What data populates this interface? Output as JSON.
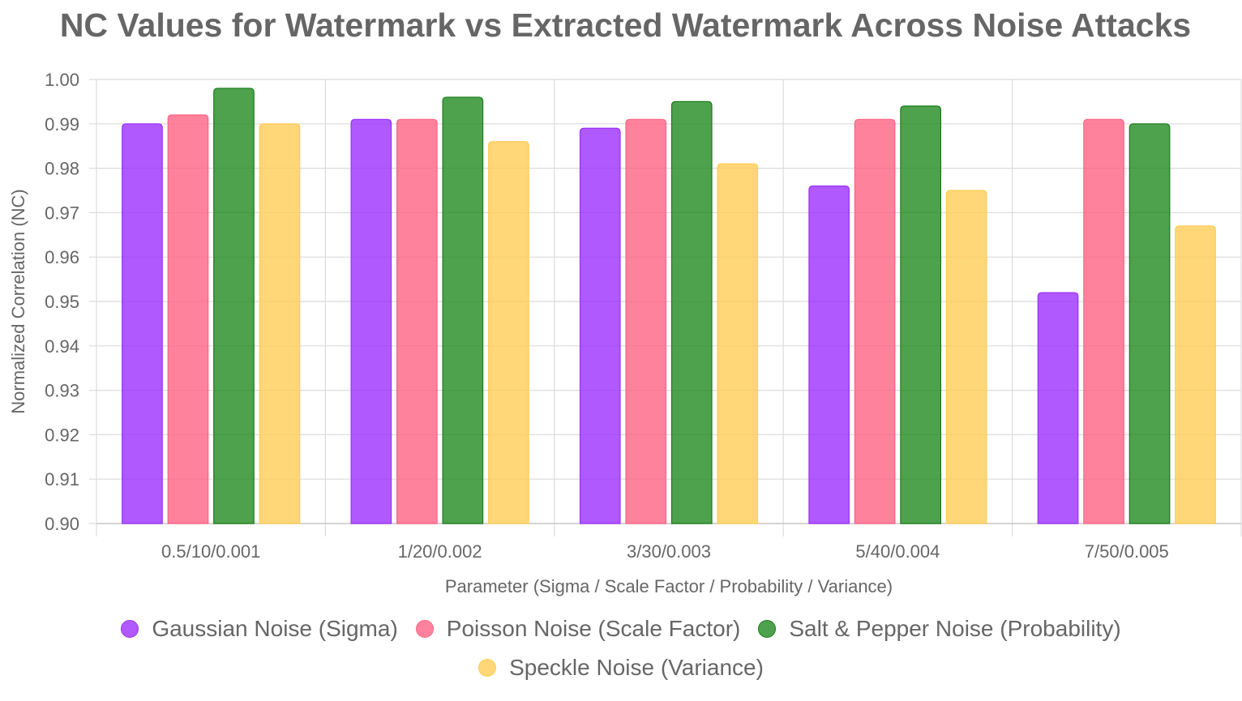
{
  "chart_data": {
    "type": "bar",
    "title": "NC Values for Watermark vs Extracted Watermark Across Noise Attacks",
    "xlabel": "Parameter (Sigma / Scale Factor / Probability / Variance)",
    "ylabel": "Normalized Correlation (NC)",
    "ylim": [
      0.9,
      1.0
    ],
    "yticks": [
      "0.90",
      "0.91",
      "0.92",
      "0.93",
      "0.94",
      "0.95",
      "0.96",
      "0.97",
      "0.98",
      "0.99",
      "1.00"
    ],
    "categories": [
      "0.5/10/0.001",
      "1/20/0.002",
      "3/30/0.003",
      "5/40/0.004",
      "7/50/0.005"
    ],
    "series": [
      {
        "name": "Gaussian Noise (Sigma)",
        "values": [
          0.99,
          0.991,
          0.989,
          0.976,
          0.952
        ],
        "color": "#9b30ff",
        "fill": "rgba(155,48,255,0.8)"
      },
      {
        "name": "Poisson Noise (Scale Factor)",
        "values": [
          0.992,
          0.991,
          0.991,
          0.991,
          0.991
        ],
        "color": "#ff6384",
        "fill": "rgba(255,99,132,0.8)"
      },
      {
        "name": "Salt & Pepper Noise (Probability)",
        "values": [
          0.998,
          0.996,
          0.995,
          0.994,
          0.99
        ],
        "color": "#1b7a1b",
        "fill": "rgba(34,139,34,0.8)"
      },
      {
        "name": "Speckle Noise (Variance)",
        "values": [
          0.99,
          0.986,
          0.981,
          0.975,
          0.967
        ],
        "color": "#ffcd56",
        "fill": "rgba(255,205,86,0.8)"
      }
    ],
    "grid": true,
    "legend_position": "bottom"
  }
}
